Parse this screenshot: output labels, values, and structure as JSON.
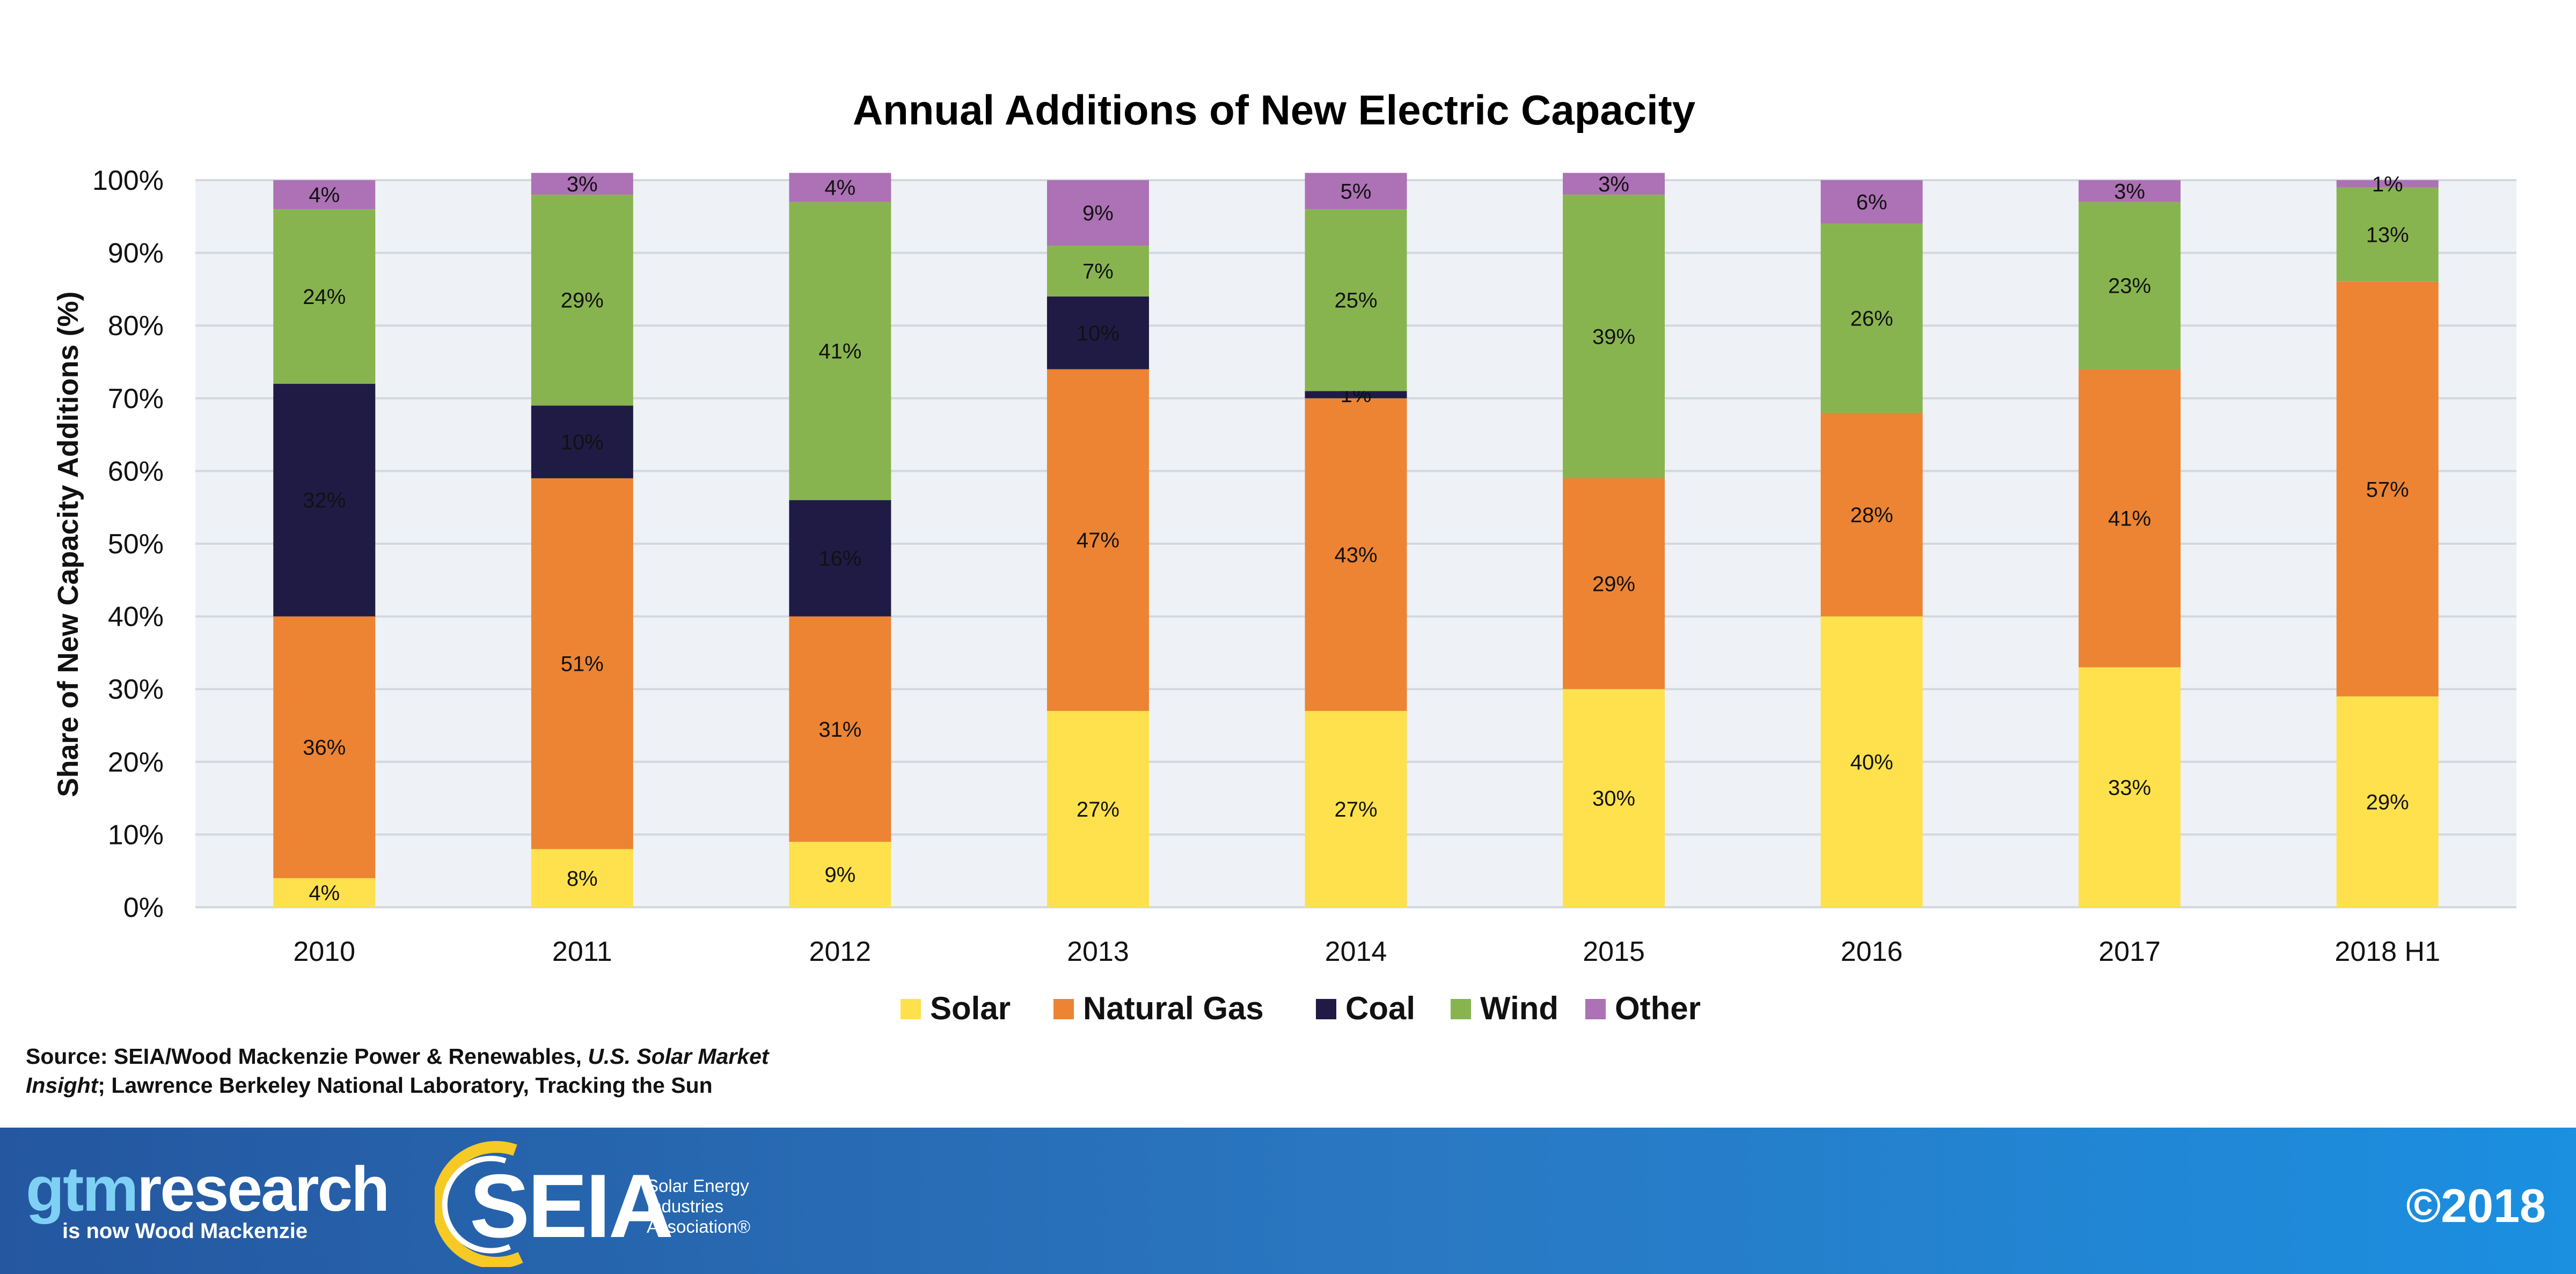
{
  "chart_data": {
    "type": "bar",
    "stacked": true,
    "title": "Annual Additions of New Electric Capacity",
    "xlabel": "",
    "ylabel": "Share of New Capacity Additions (%)",
    "ylim": [
      0,
      100
    ],
    "yticks": [
      "0%",
      "10%",
      "20%",
      "30%",
      "40%",
      "50%",
      "60%",
      "70%",
      "80%",
      "90%",
      "100%"
    ],
    "grid": true,
    "legend_position": "bottom",
    "categories": [
      "2010",
      "2011",
      "2012",
      "2013",
      "2014",
      "2015",
      "2016",
      "2017",
      "2018 H1"
    ],
    "series": [
      {
        "name": "Solar",
        "color": "#fee14d",
        "values": [
          4,
          8,
          9,
          27,
          27,
          30,
          40,
          33,
          29
        ],
        "labels": [
          "4%",
          "8%",
          "9%",
          "27%",
          "27%",
          "30%",
          "40%",
          "33%",
          "29%"
        ]
      },
      {
        "name": "Natural Gas",
        "color": "#ec8434",
        "values": [
          36,
          51,
          31,
          47,
          43,
          29,
          28,
          41,
          57
        ],
        "labels": [
          "36%",
          "51%",
          "31%",
          "47%",
          "43%",
          "29%",
          "28%",
          "41%",
          "57%"
        ]
      },
      {
        "name": "Coal",
        "color": "#1f1b45",
        "values": [
          32,
          10,
          16,
          10,
          1,
          0,
          0,
          0,
          0
        ],
        "labels": [
          "32%",
          "10%",
          "16%",
          "10%",
          "1%",
          "",
          "",
          "",
          ""
        ]
      },
      {
        "name": "Wind",
        "color": "#88b450",
        "values": [
          24,
          29,
          41,
          7,
          25,
          39,
          26,
          23,
          13
        ],
        "labels": [
          "24%",
          "29%",
          "41%",
          "7%",
          "25%",
          "39%",
          "26%",
          "23%",
          "13%"
        ]
      },
      {
        "name": "Other",
        "color": "#ad71b5",
        "values": [
          4,
          3,
          4,
          9,
          5,
          3,
          6,
          3,
          1
        ],
        "labels": [
          "4%",
          "3%",
          "4%",
          "9%",
          "5%",
          "3%",
          "6%",
          "3%",
          "1%"
        ]
      }
    ],
    "plot_background": "#eef2f6",
    "gridline_color": "#d3d8de"
  },
  "source": {
    "prefix": "Source: SEIA/Wood Mackenzie Power & Renewables,",
    "italic": "U.S. Solar Market Insight",
    "suffix": "; Lawrence Berkeley National Laboratory, Tracking the Sun"
  },
  "footer": {
    "gtm_part1": "gtm",
    "gtm_part2": "research",
    "gtm_sub": "is now Wood Mackenzie",
    "seia_word": "SEIA",
    "seia_tagline_1": "Solar Energy",
    "seia_tagline_2": "Industries",
    "seia_tagline_3": "Association®",
    "copyright": "©2018",
    "gtm_accent": "#7fd0f5",
    "seia_ring_color": "#f7c925"
  }
}
